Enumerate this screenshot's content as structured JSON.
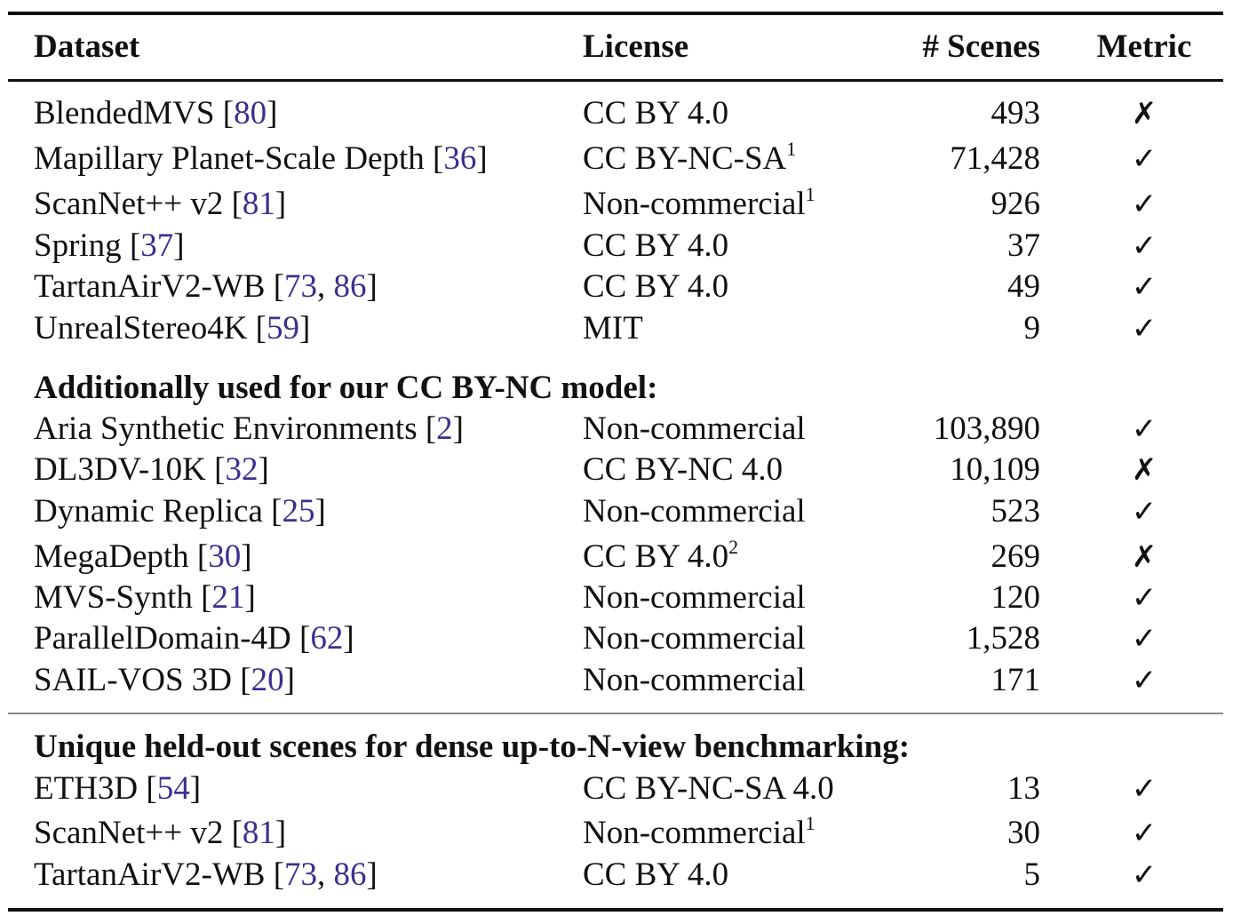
{
  "header": {
    "dataset": "Dataset",
    "license": "License",
    "scenes": "# Scenes",
    "metric": "Metric"
  },
  "sections": [
    {
      "title": "",
      "rows": [
        {
          "name": "BlendedMVS",
          "refs": [
            "80"
          ],
          "license": "CC BY 4.0",
          "sup": "",
          "scenes": "493",
          "metric": "✗"
        },
        {
          "name": "Mapillary Planet-Scale Depth",
          "refs": [
            "36"
          ],
          "license": "CC BY-NC-SA",
          "sup": "1",
          "scenes": "71,428",
          "metric": "✓"
        },
        {
          "name": "ScanNet++ v2",
          "refs": [
            "81"
          ],
          "license": "Non-commercial",
          "sup": "1",
          "scenes": "926",
          "metric": "✓"
        },
        {
          "name": "Spring",
          "refs": [
            "37"
          ],
          "license": "CC BY 4.0",
          "sup": "",
          "scenes": "37",
          "metric": "✓"
        },
        {
          "name": "TartanAirV2-WB",
          "refs": [
            "73",
            "86"
          ],
          "license": "CC BY 4.0",
          "sup": "",
          "scenes": "49",
          "metric": "✓"
        },
        {
          "name": "UnrealStereo4K",
          "refs": [
            "59"
          ],
          "license": "MIT",
          "sup": "",
          "scenes": "9",
          "metric": "✓"
        }
      ]
    },
    {
      "title": "Additionally used for our CC BY-NC model:",
      "rows": [
        {
          "name": "Aria Synthetic Environments",
          "refs": [
            "2"
          ],
          "license": "Non-commercial",
          "sup": "",
          "scenes": "103,890",
          "metric": "✓"
        },
        {
          "name": "DL3DV-10K",
          "refs": [
            "32"
          ],
          "license": "CC BY-NC 4.0",
          "sup": "",
          "scenes": "10,109",
          "metric": "✗"
        },
        {
          "name": "Dynamic Replica",
          "refs": [
            "25"
          ],
          "license": "Non-commercial",
          "sup": "",
          "scenes": "523",
          "metric": "✓"
        },
        {
          "name": "MegaDepth",
          "refs": [
            "30"
          ],
          "license": "CC BY 4.0",
          "sup": "2",
          "scenes": "269",
          "metric": "✗"
        },
        {
          "name": "MVS-Synth",
          "refs": [
            "21"
          ],
          "license": "Non-commercial",
          "sup": "",
          "scenes": "120",
          "metric": "✓"
        },
        {
          "name": "ParallelDomain-4D",
          "refs": [
            "62"
          ],
          "license": "Non-commercial",
          "sup": "",
          "scenes": "1,528",
          "metric": "✓"
        },
        {
          "name": "SAIL-VOS 3D",
          "refs": [
            "20"
          ],
          "license": "Non-commercial",
          "sup": "",
          "scenes": "171",
          "metric": "✓"
        }
      ]
    },
    {
      "title": "Unique held-out scenes for dense up-to-N-view benchmarking:",
      "rows": [
        {
          "name": "ETH3D",
          "refs": [
            "54"
          ],
          "license": "CC BY-NC-SA 4.0",
          "sup": "",
          "scenes": "13",
          "metric": "✓"
        },
        {
          "name": "ScanNet++ v2",
          "refs": [
            "81"
          ],
          "license": "Non-commercial",
          "sup": "1",
          "scenes": "30",
          "metric": "✓"
        },
        {
          "name": "TartanAirV2-WB",
          "refs": [
            "73",
            "86"
          ],
          "license": "CC BY 4.0",
          "sup": "",
          "scenes": "5",
          "metric": "✓"
        }
      ]
    }
  ]
}
